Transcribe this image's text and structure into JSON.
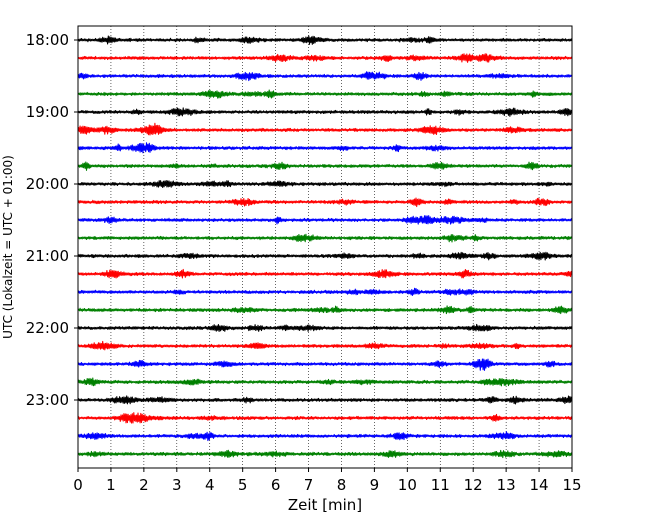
{
  "chart_data": {
    "type": "line",
    "title": "",
    "xlabel": "Zeit  [min]",
    "ylabel": "UTC (Lokalzeit = UTC + 01:00)",
    "xlim": [
      0,
      15
    ],
    "x_ticks": [
      "0",
      "1",
      "2",
      "3",
      "4",
      "5",
      "6",
      "7",
      "8",
      "9",
      "10",
      "11",
      "12",
      "13",
      "14",
      "15"
    ],
    "y_ticks": [
      "18:00",
      "19:00",
      "20:00",
      "21:00",
      "22:00",
      "23:00"
    ],
    "grid": "vertical dotted lines at each minute",
    "legend": "none",
    "trace_interval_min": 15,
    "start_time": "18:00",
    "series": [
      {
        "start": "18:00",
        "color": "#000000"
      },
      {
        "start": "18:15",
        "color": "#ff0000"
      },
      {
        "start": "18:30",
        "color": "#0000ff"
      },
      {
        "start": "18:45",
        "color": "#008000"
      },
      {
        "start": "19:00",
        "color": "#000000"
      },
      {
        "start": "19:15",
        "color": "#ff0000"
      },
      {
        "start": "19:30",
        "color": "#0000ff"
      },
      {
        "start": "19:45",
        "color": "#008000"
      },
      {
        "start": "20:00",
        "color": "#000000"
      },
      {
        "start": "20:15",
        "color": "#ff0000"
      },
      {
        "start": "20:30",
        "color": "#0000ff"
      },
      {
        "start": "20:45",
        "color": "#008000"
      },
      {
        "start": "21:00",
        "color": "#000000"
      },
      {
        "start": "21:15",
        "color": "#ff0000"
      },
      {
        "start": "21:30",
        "color": "#0000ff"
      },
      {
        "start": "21:45",
        "color": "#008000"
      },
      {
        "start": "22:00",
        "color": "#000000"
      },
      {
        "start": "22:15",
        "color": "#ff0000"
      },
      {
        "start": "22:30",
        "color": "#0000ff"
      },
      {
        "start": "22:45",
        "color": "#008000"
      },
      {
        "start": "23:00",
        "color": "#000000"
      },
      {
        "start": "23:15",
        "color": "#ff0000"
      },
      {
        "start": "23:30",
        "color": "#0000ff"
      },
      {
        "start": "23:45",
        "color": "#008000"
      }
    ]
  }
}
